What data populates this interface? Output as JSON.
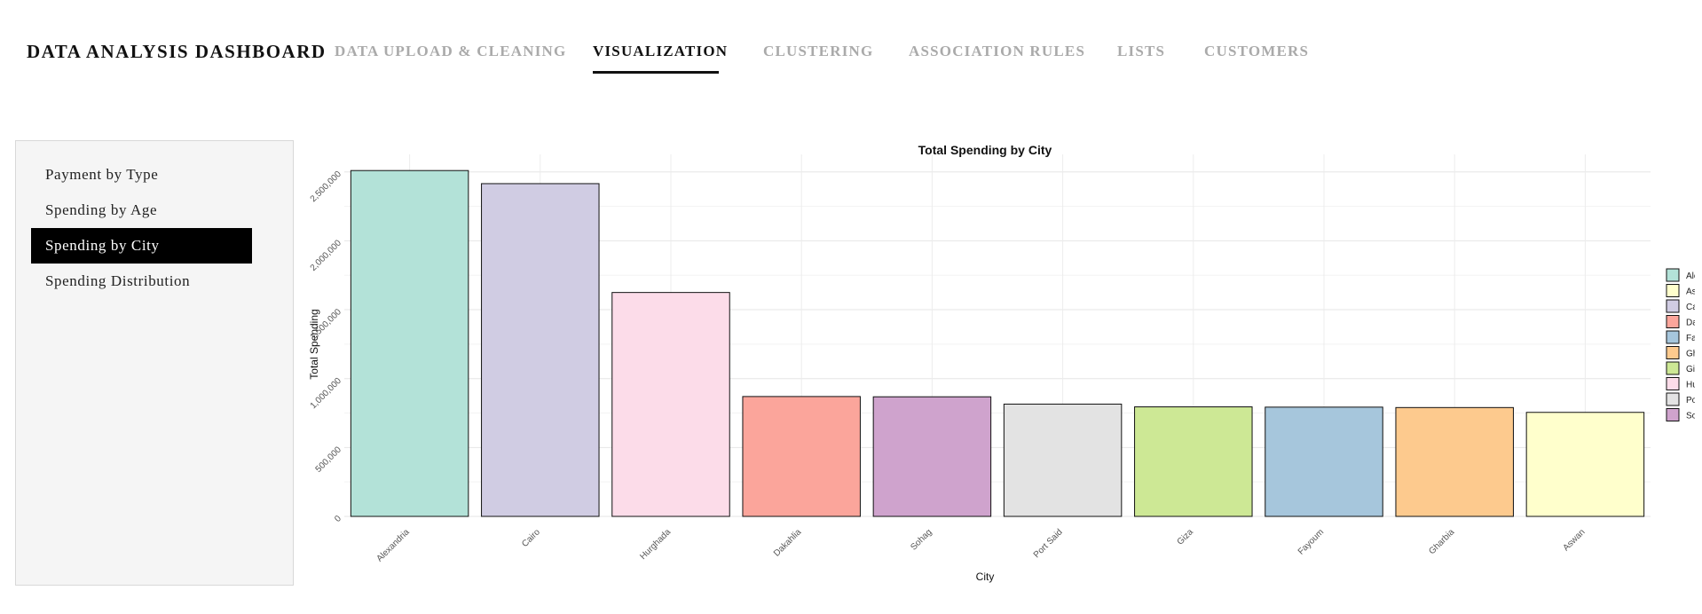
{
  "brand": "DATA ANALYSIS DASHBOARD",
  "tabs": [
    {
      "label": "DATA UPLOAD & CLEANING",
      "active": false
    },
    {
      "label": "VISUALIZATION",
      "active": true
    },
    {
      "label": "CLUSTERING",
      "active": false
    },
    {
      "label": "ASSOCIATION RULES",
      "active": false
    },
    {
      "label": "LISTS",
      "active": false
    },
    {
      "label": "CUSTOMERS",
      "active": false
    }
  ],
  "sidebar": {
    "items": [
      {
        "label": "Payment by Type",
        "active": false
      },
      {
        "label": "Spending by Age",
        "active": false
      },
      {
        "label": "Spending by City",
        "active": true
      },
      {
        "label": "Spending Distribution",
        "active": false
      }
    ]
  },
  "chart_data": {
    "type": "bar",
    "title": "Total Spending by City",
    "xlabel": "City",
    "ylabel": "Total Spending",
    "ylim": [
      0,
      2550000
    ],
    "yticks": [
      0,
      500000,
      1000000,
      1500000,
      2000000,
      2500000
    ],
    "ytick_labels": [
      "0",
      "500,000",
      "1,000,000",
      "1,500,000",
      "2,000,000",
      "2,500,000"
    ],
    "grid": true,
    "legend_position": "right",
    "categories": [
      "Alexandria",
      "Cairo",
      "Hurghada",
      "Dakahlia",
      "Sohag",
      "Port Said",
      "Giza",
      "Fayoum",
      "Gharbia",
      "Aswan"
    ],
    "values": [
      2510000,
      2415000,
      1625000,
      870000,
      868000,
      815000,
      795000,
      793000,
      790000,
      755000
    ],
    "colors": {
      "Alexandria": "#b3e2d8",
      "Aswan": "#ffffcc",
      "Cairo": "#d0cce3",
      "Dakahlia": "#fba59b",
      "Fayoum": "#a6c6dc",
      "Gharbia": "#fdca8e",
      "Giza": "#cde895",
      "Hurghada": "#fcdce9",
      "Port Said": "#e3e3e3",
      "Sohag": "#cfa3cd"
    },
    "legend": [
      "Alexandria",
      "Aswan",
      "Cairo",
      "Dakahlia",
      "Fayoum",
      "Gharbia",
      "Giza",
      "Hurghada",
      "Port Said",
      "Sohag"
    ]
  }
}
